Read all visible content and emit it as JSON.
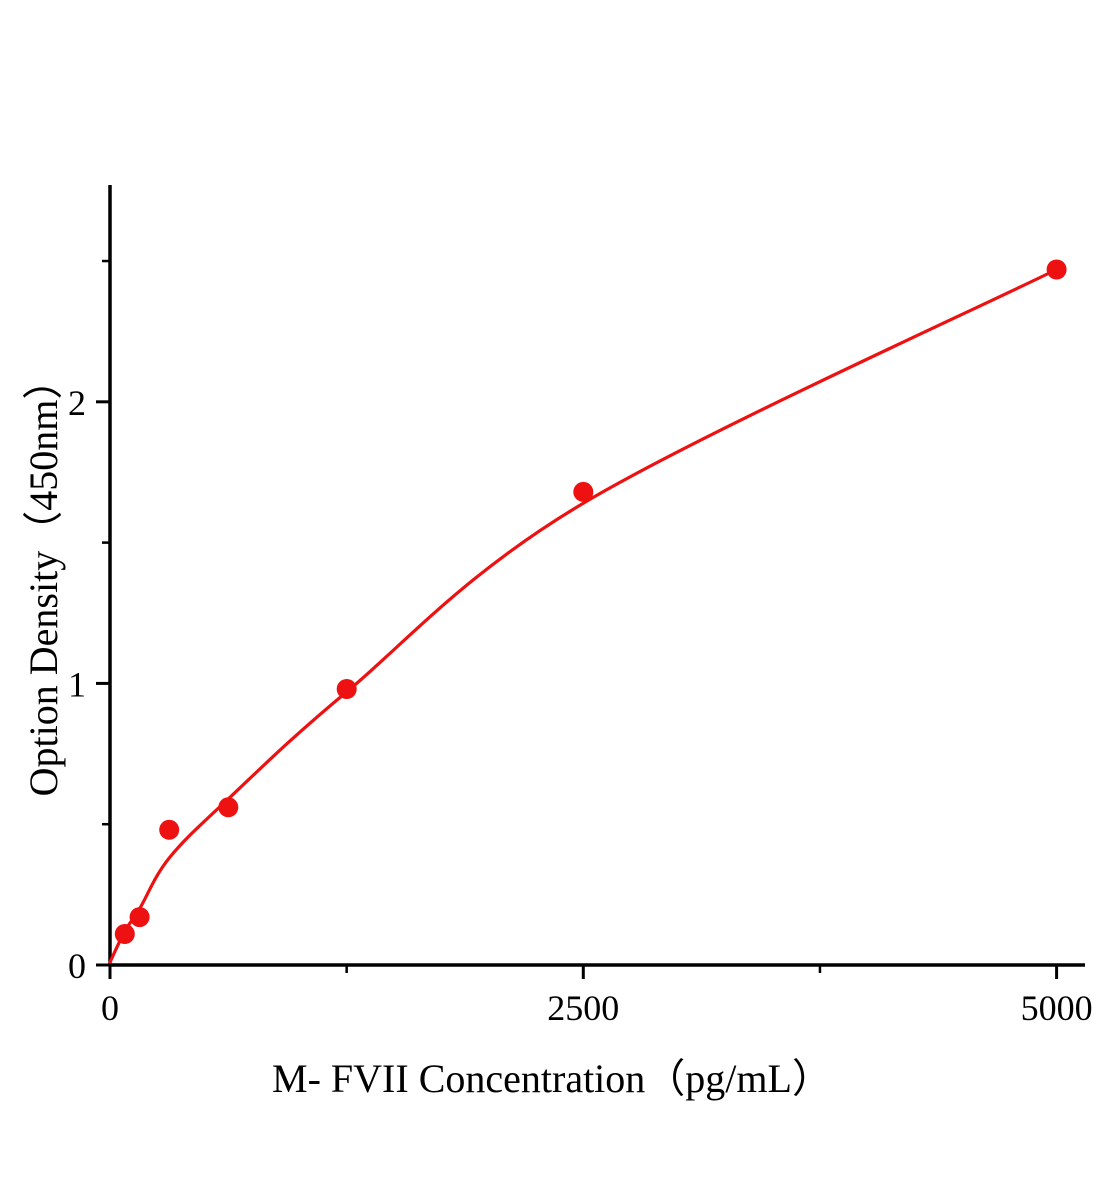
{
  "chart_data": {
    "type": "scatter",
    "title": "",
    "xlabel": "M- FVII Concentration（pg/mL）",
    "ylabel": "Option Density（450nm）",
    "x": [
      78.125,
      156.25,
      312.5,
      625,
      1250,
      2500,
      5000
    ],
    "y": [
      0.11,
      0.17,
      0.48,
      0.56,
      0.98,
      1.68,
      2.47
    ],
    "fit_curve": {
      "x": [
        0,
        78.125,
        156.25,
        312.5,
        625,
        1250,
        2500,
        5000
      ],
      "y": [
        0.01,
        0.12,
        0.2,
        0.38,
        0.59,
        0.97,
        1.64,
        2.47
      ]
    },
    "xlim": [
      0,
      5150
    ],
    "ylim": [
      0,
      2.77
    ],
    "x_major_ticks": [
      0,
      2500,
      5000
    ],
    "x_minor_ticks": [
      1250,
      3750
    ],
    "y_major_ticks": [
      0,
      1,
      2
    ],
    "y_minor_ticks": [
      0.5,
      1.5,
      2.5
    ],
    "grid": false,
    "legend": null,
    "marker_color": "#ee1111",
    "line_color": "#ee1111",
    "axis_color": "#000000"
  }
}
